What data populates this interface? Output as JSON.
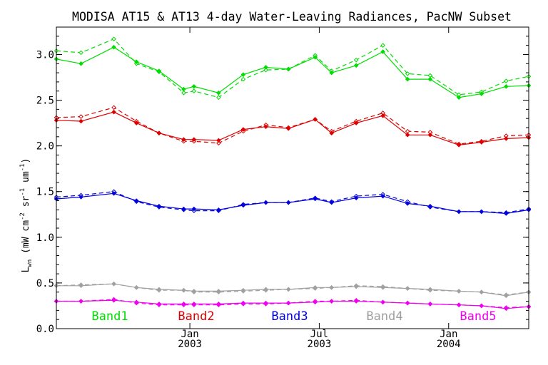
{
  "chart_data": {
    "type": "line",
    "title": "MODISA AT15 & AT13 4-day Water-Leaving Radiances, PacNW Subset",
    "ylabel_main": "L",
    "ylabel_sub": "wn",
    "ylabel_units_open": " (mW cm",
    "ylabel_exp1": "-2",
    "ylabel_mid1": " sr",
    "ylabel_exp2": "-1",
    "ylabel_mid2": " um",
    "ylabel_exp3": "-1",
    "ylabel_close": ")",
    "ylim": [
      0.0,
      3.3
    ],
    "xlim": [
      0,
      23.0
    ],
    "y_ticks": [
      {
        "value": 0.0,
        "label": "0.0"
      },
      {
        "value": 0.5,
        "label": "0.5"
      },
      {
        "value": 1.0,
        "label": "1.0"
      },
      {
        "value": 1.5,
        "label": "1.5"
      },
      {
        "value": 2.0,
        "label": "2.0"
      },
      {
        "value": 2.5,
        "label": "2.5"
      },
      {
        "value": 3.0,
        "label": "3.0"
      }
    ],
    "x_ticks": [
      {
        "value": 6.5,
        "line1": "Jan",
        "line2": "2003"
      },
      {
        "value": 12.8,
        "line1": "Jul",
        "line2": "2003"
      },
      {
        "value": 19.1,
        "line1": "Jan",
        "line2": "2004"
      }
    ],
    "x": [
      0,
      1.2,
      2.8,
      3.9,
      5.0,
      6.2,
      6.7,
      7.9,
      9.1,
      10.2,
      11.3,
      12.6,
      13.4,
      14.6,
      15.9,
      17.1,
      18.2,
      19.6,
      20.7,
      21.9,
      23.0
    ],
    "grid": false,
    "series": [
      {
        "name": "Band1",
        "color": "#00dd00",
        "at15": [
          2.95,
          2.9,
          3.08,
          2.92,
          2.82,
          2.62,
          2.65,
          2.58,
          2.78,
          2.86,
          2.84,
          2.97,
          2.8,
          2.88,
          3.03,
          2.73,
          2.73,
          2.53,
          2.57,
          2.65,
          2.66
        ],
        "at13": [
          3.04,
          3.02,
          3.17,
          2.9,
          2.81,
          2.58,
          2.6,
          2.53,
          2.73,
          2.83,
          2.84,
          2.99,
          2.82,
          2.94,
          3.1,
          2.79,
          2.77,
          2.56,
          2.59,
          2.71,
          2.76
        ]
      },
      {
        "name": "Band2",
        "color": "#dd0000",
        "at15": [
          2.28,
          2.27,
          2.37,
          2.25,
          2.14,
          2.07,
          2.07,
          2.06,
          2.18,
          2.21,
          2.19,
          2.29,
          2.14,
          2.25,
          2.33,
          2.12,
          2.12,
          2.01,
          2.04,
          2.08,
          2.09
        ],
        "at13": [
          2.31,
          2.32,
          2.42,
          2.27,
          2.14,
          2.05,
          2.05,
          2.03,
          2.16,
          2.23,
          2.2,
          2.29,
          2.16,
          2.27,
          2.36,
          2.16,
          2.15,
          2.02,
          2.05,
          2.11,
          2.12
        ]
      },
      {
        "name": "Band3",
        "color": "#0000dd",
        "at15": [
          1.42,
          1.44,
          1.48,
          1.4,
          1.34,
          1.31,
          1.31,
          1.3,
          1.35,
          1.38,
          1.38,
          1.42,
          1.38,
          1.43,
          1.45,
          1.37,
          1.34,
          1.28,
          1.28,
          1.26,
          1.3
        ],
        "at13": [
          1.44,
          1.46,
          1.5,
          1.39,
          1.33,
          1.3,
          1.29,
          1.29,
          1.36,
          1.38,
          1.38,
          1.43,
          1.39,
          1.45,
          1.47,
          1.39,
          1.33,
          1.28,
          1.28,
          1.27,
          1.31
        ]
      },
      {
        "name": "Band4",
        "color": "#a0a0a0",
        "at15": [
          0.47,
          0.47,
          0.49,
          0.45,
          0.43,
          0.42,
          0.41,
          0.41,
          0.42,
          0.43,
          0.43,
          0.45,
          0.45,
          0.46,
          0.45,
          0.44,
          0.43,
          0.41,
          0.4,
          0.36,
          0.4
        ],
        "at13": [
          0.47,
          0.48,
          0.49,
          0.45,
          0.42,
          0.42,
          0.4,
          0.4,
          0.41,
          0.42,
          0.43,
          0.44,
          0.45,
          0.47,
          0.46,
          0.44,
          0.42,
          0.41,
          0.4,
          0.37,
          0.4
        ]
      },
      {
        "name": "Band5",
        "color": "#ee00ee",
        "at15": [
          0.3,
          0.3,
          0.31,
          0.29,
          0.27,
          0.27,
          0.27,
          0.27,
          0.28,
          0.28,
          0.28,
          0.29,
          0.3,
          0.3,
          0.29,
          0.28,
          0.27,
          0.26,
          0.25,
          0.22,
          0.24
        ],
        "at13": [
          0.3,
          0.3,
          0.32,
          0.28,
          0.26,
          0.26,
          0.26,
          0.26,
          0.27,
          0.27,
          0.28,
          0.3,
          0.3,
          0.31,
          0.29,
          0.28,
          0.27,
          0.26,
          0.25,
          0.23,
          0.24
        ]
      }
    ]
  }
}
